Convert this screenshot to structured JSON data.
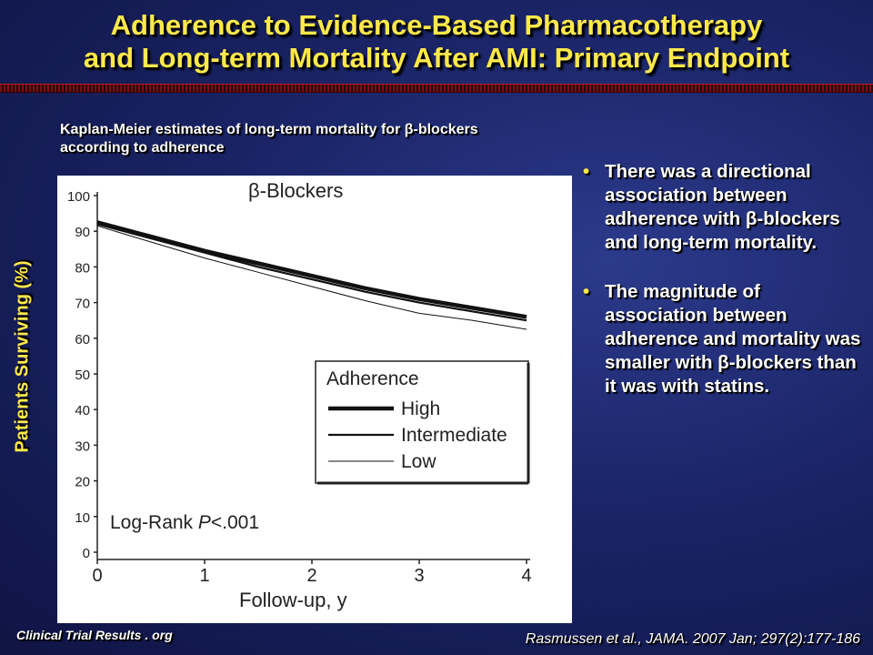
{
  "title": {
    "line1": "Adherence to Evidence-Based Pharmacotherapy",
    "line2": "and Long-term Mortality After AMI: Primary Endpoint"
  },
  "subtitle": {
    "line1": "Kaplan-Meier estimates of long-term mortality for β-blockers",
    "line2": "according to adherence"
  },
  "y_axis_label": "Patients Surviving (%)",
  "bullets": [
    "There was a directional association between adherence with β-blockers and long-term mortality.",
    "The magnitude of association between adherence and mortality was smaller with β-blockers than it was with statins."
  ],
  "footer": {
    "site": "Clinical Trial Results . org",
    "citation": "Rasmussen et al., JAMA. 2007 Jan; 297(2):177-186"
  },
  "colors": {
    "title": "#ffe94a",
    "background": "#1a2466",
    "bullet_dot": "#ffe94a"
  },
  "chart_data": {
    "type": "line",
    "title": "β-Blockers",
    "xlabel": "Follow-up, y",
    "ylabel": "",
    "xlim": [
      0,
      4
    ],
    "ylim": [
      0,
      100
    ],
    "xticks": [
      "0",
      "1",
      "2",
      "3",
      "4"
    ],
    "yticks": [
      "0",
      "10",
      "20",
      "30",
      "40",
      "50",
      "60",
      "70",
      "80",
      "90",
      "100"
    ],
    "annotation_prefix": "Log-Rank ",
    "annotation_p": "P",
    "annotation_suffix": "<.001",
    "legend_title": "Adherence",
    "legend_position": "center-right",
    "series": [
      {
        "name": "High",
        "x": [
          0,
          0.5,
          1,
          1.5,
          2,
          2.5,
          3,
          3.5,
          4
        ],
        "values": [
          92.5,
          88.5,
          84.5,
          81,
          77.5,
          74,
          71,
          68.5,
          66
        ]
      },
      {
        "name": "Intermediate",
        "x": [
          0,
          0.5,
          1,
          1.5,
          2,
          2.5,
          3,
          3.5,
          4
        ],
        "values": [
          92,
          88,
          84,
          80,
          76.5,
          73,
          70,
          67.5,
          65
        ]
      },
      {
        "name": "Low",
        "x": [
          0,
          0.5,
          1,
          1.5,
          2,
          2.5,
          3,
          3.5,
          4
        ],
        "values": [
          91.5,
          87,
          82.5,
          78.5,
          74.5,
          70.5,
          67,
          65,
          62.5
        ]
      }
    ]
  }
}
